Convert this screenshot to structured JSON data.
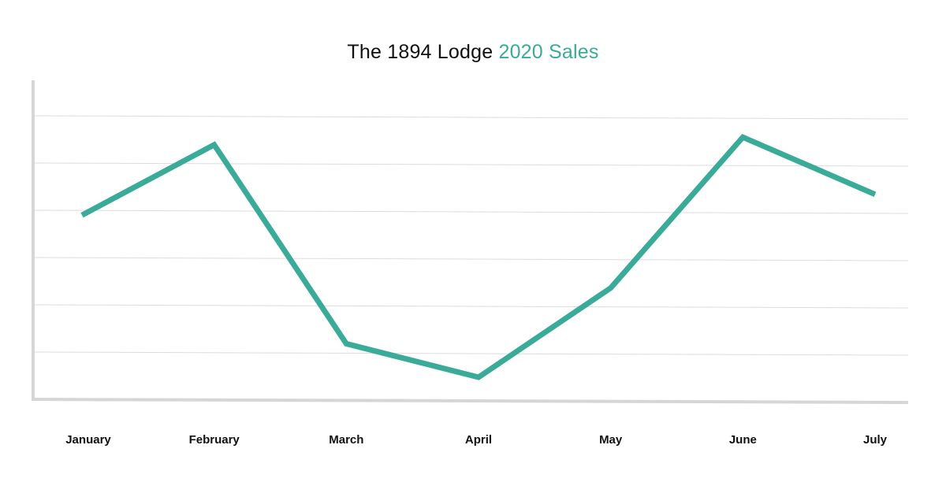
{
  "chart_data": {
    "type": "line",
    "title_main": "The 1894 Lodge",
    "title_accent": "2020 Sales",
    "xlabel": "",
    "ylabel": "",
    "categories": [
      "January",
      "February",
      "March",
      "April",
      "May",
      "June",
      "July"
    ],
    "series": [
      {
        "values": [
          3.9,
          5.4,
          1.2,
          0.5,
          2.4,
          5.6,
          4.4
        ]
      }
    ],
    "ylim": [
      0,
      6.7
    ],
    "gridlines": [
      1,
      2,
      3,
      4,
      5,
      6
    ],
    "grid": true,
    "y_tick_labels_shown": false,
    "colors": {
      "line": "#3aab98",
      "accent_title": "#3aab98",
      "grid": "#dcdcdc",
      "axis": "#d6d6d6",
      "text": "#111111"
    }
  }
}
